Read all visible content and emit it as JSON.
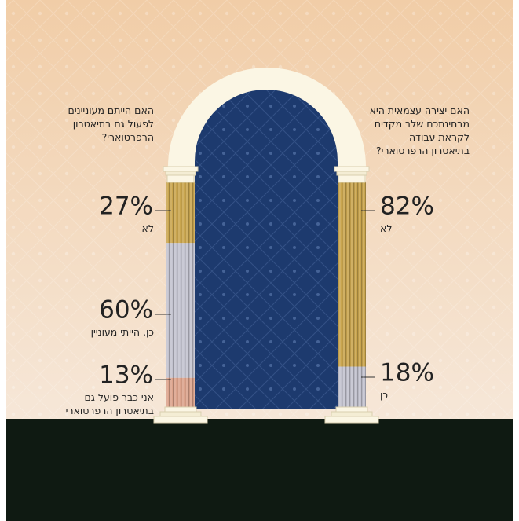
{
  "chart_data": [
    {
      "type": "stacked-column",
      "title": "האם הייתם מעוניינים לפעול גם בתיאטרון הרפרטוארי?",
      "series": [
        {
          "name": "לא",
          "color": "#c9a54e",
          "values": [
            27
          ],
          "value_labels": [
            "27%"
          ]
        },
        {
          "name": "כן, הייתי מעוניין",
          "color": "#c3c3cf",
          "values": [
            60
          ],
          "value_labels": [
            "60%"
          ]
        },
        {
          "name": "אני כבר פועל גם בתיאטרון הרפרטוארי",
          "color": "#dca38c",
          "values": [
            13
          ],
          "value_labels": [
            "13%"
          ]
        }
      ]
    },
    {
      "type": "stacked-column",
      "title": "האם יצירה עצמאית היא מבחינתכם שלב מקדים לקראת עבודה בתיאטרון הרפרטוארי?",
      "series": [
        {
          "name": "לא",
          "color": "#c9a54e",
          "values": [
            82
          ],
          "value_labels": [
            "82%"
          ]
        },
        {
          "name": "כן",
          "color": "#c3c3cf",
          "values": [
            18
          ],
          "value_labels": [
            "18%"
          ]
        }
      ]
    }
  ]
}
